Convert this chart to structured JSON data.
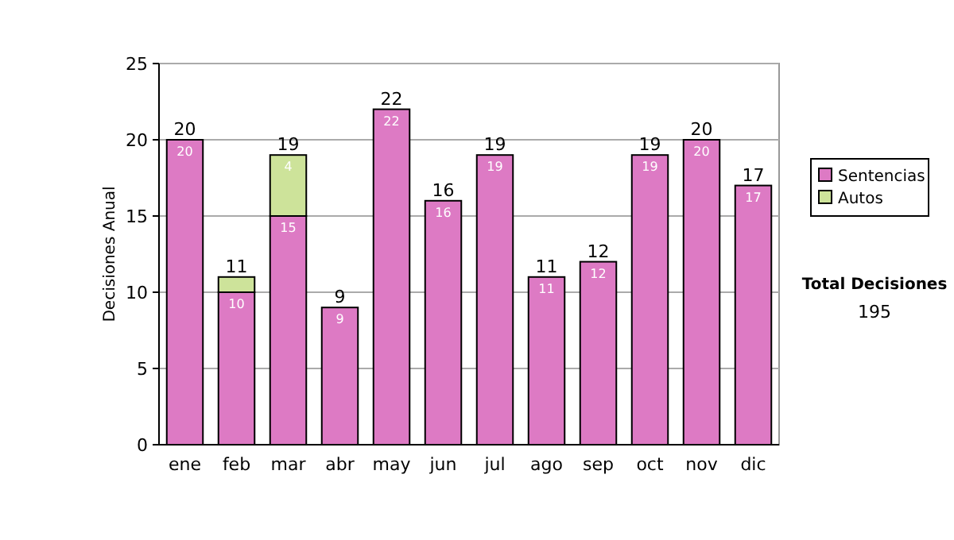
{
  "chart_data": {
    "type": "bar",
    "stacked": true,
    "ylabel": "Decisiones Anual",
    "categories": [
      "ene",
      "feb",
      "mar",
      "abr",
      "may",
      "jun",
      "jul",
      "ago",
      "sep",
      "oct",
      "nov",
      "dic"
    ],
    "series": [
      {
        "name": "Sentencias",
        "color": "#dd7ac4",
        "values": [
          20,
          10,
          15,
          9,
          22,
          16,
          19,
          11,
          12,
          19,
          20,
          17
        ],
        "value_labels": [
          "20",
          "10",
          "15",
          "9",
          "22",
          "16",
          "19",
          "11",
          "12",
          "19",
          "20",
          "17"
        ]
      },
      {
        "name": "Autos",
        "color": "#cde39a",
        "values": [
          null,
          1,
          4,
          null,
          null,
          null,
          null,
          null,
          null,
          null,
          null,
          null
        ],
        "value_labels": [
          null,
          null,
          "4",
          null,
          null,
          null,
          null,
          null,
          null,
          null,
          null,
          null
        ]
      }
    ],
    "totals": [
      "20",
      "11",
      "19",
      "9",
      "22",
      "16",
      "19",
      "11",
      "12",
      "19",
      "20",
      "17"
    ],
    "ylim": [
      0,
      25
    ],
    "yticks": [
      0,
      5,
      10,
      15,
      20,
      25
    ],
    "grid": "y",
    "legend": "right",
    "annotations": [
      "Total Decisiones",
      "195"
    ]
  }
}
